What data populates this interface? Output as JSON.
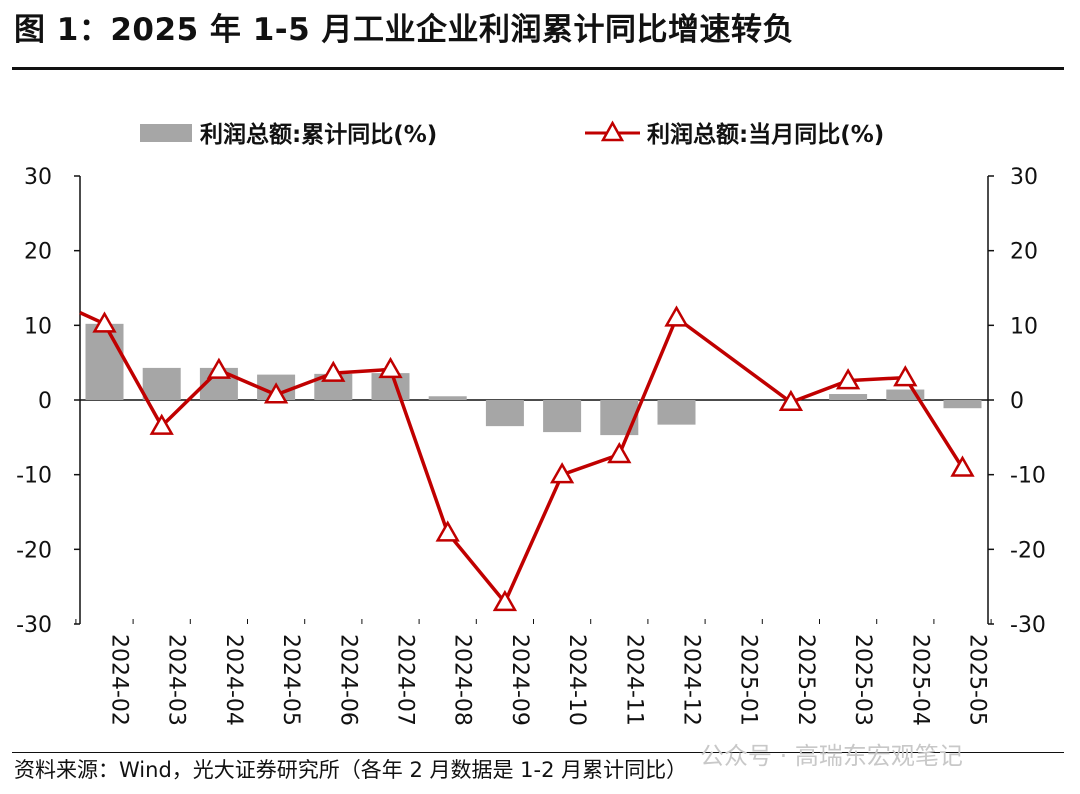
{
  "title": "图 1：2025 年 1-5 月工业企业利润累计同比增速转负",
  "source": "资料来源：Wind，光大证券研究所（各年 2 月数据是 1-2 月累计同比）",
  "watermark": "公众号 · 高瑞东宏观笔记",
  "colors": {
    "bar": "#a6a6a6",
    "line": "#c00000"
  },
  "chart_data": {
    "type": "bar+line",
    "categories": [
      "2024-02",
      "2024-03",
      "2024-04",
      "2024-05",
      "2024-06",
      "2024-07",
      "2024-08",
      "2024-09",
      "2024-10",
      "2024-11",
      "2024-12",
      "2025-01",
      "2025-02",
      "2025-03",
      "2025-04",
      "2025-05"
    ],
    "series": [
      {
        "name": "利润总额:累计同比(%)",
        "type": "bar",
        "values": [
          10.2,
          4.3,
          4.3,
          3.4,
          3.5,
          3.6,
          0.5,
          -3.5,
          -4.3,
          -4.7,
          -3.3,
          null,
          null,
          0.8,
          1.4,
          -1.1
        ]
      },
      {
        "name": "利润总额:当月同比(%)",
        "type": "line",
        "marker": "triangle",
        "values": [
          10.2,
          -3.5,
          4.0,
          0.7,
          3.6,
          4.1,
          -17.8,
          -27.1,
          -10.0,
          -7.3,
          11.0,
          null,
          -0.3,
          2.6,
          3.0,
          -9.1
        ],
        "line_start_value": 11.7
      }
    ],
    "yleft": {
      "ticks": [
        30,
        20,
        10,
        0,
        -10,
        -20,
        -30
      ]
    },
    "yright": {
      "ticks": [
        30,
        20,
        10,
        0,
        -10,
        -20,
        -30
      ]
    },
    "ylim": [
      -30,
      30
    ],
    "legend_position": "top",
    "grid": false
  }
}
